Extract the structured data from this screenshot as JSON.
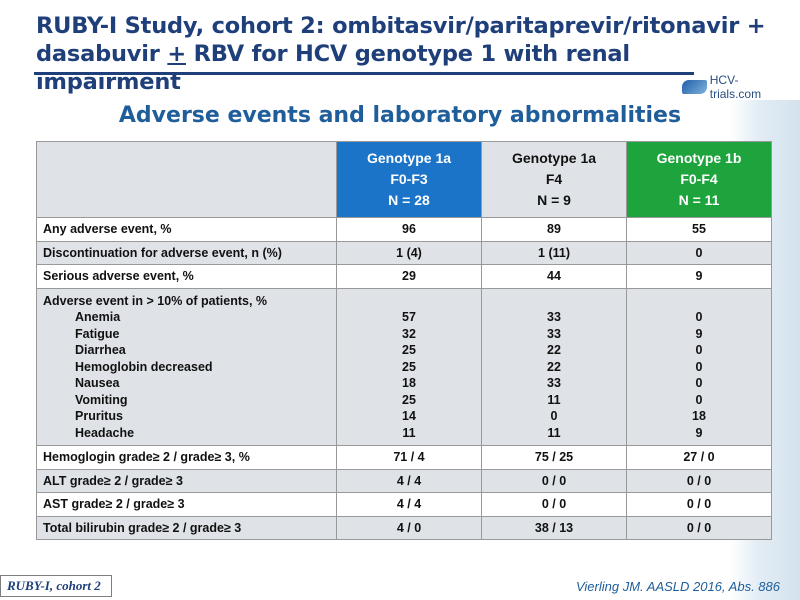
{
  "title_line1": "RUBY-I Study, cohort 2: ombitasvir/paritaprevir/ritonavir +",
  "title_line2_pre": "dasabuvir ",
  "title_line2_plus": "+",
  "title_line2_post": " RBV for HCV genotype 1 with renal impairment",
  "logo_text": "HCV-trials.com",
  "subtitle": "Adverse events and laboratory abnormalities",
  "columns": [
    {
      "l1": "Genotype 1a",
      "l2": "F0-F3",
      "l3": "N = 28"
    },
    {
      "l1": "Genotype 1a",
      "l2": "F4",
      "l3": "N = 9"
    },
    {
      "l1": "Genotype 1b",
      "l2": "F0-F4",
      "l3": "N = 11"
    }
  ],
  "rows": [
    {
      "label": "Any adverse event, %",
      "v": [
        "96",
        "89",
        "55"
      ]
    },
    {
      "label": "Discontinuation for adverse event, n (%)",
      "v": [
        "1 (4)",
        "1 (11)",
        "0"
      ]
    },
    {
      "label": "Serious adverse event, %",
      "v": [
        "29",
        "44",
        "9"
      ]
    }
  ],
  "ae_group": {
    "label": "Adverse event in > 10% of patients, %",
    "items": [
      "Anemia",
      "Fatigue",
      "Diarrhea",
      "Hemoglobin decreased",
      "Nausea",
      "Vomiting",
      "Pruritus",
      "Headache"
    ],
    "c1": [
      "57",
      "32",
      "25",
      "25",
      "18",
      "25",
      "14",
      "11"
    ],
    "c2": [
      "33",
      "33",
      "22",
      "22",
      "33",
      "11",
      "0",
      "11"
    ],
    "c3": [
      "0",
      "9",
      "0",
      "0",
      "0",
      "0",
      "18",
      "9"
    ]
  },
  "rows2": [
    {
      "label": "Hemoglogin grade≥ 2 / grade≥ 3, %",
      "v": [
        "71 / 4",
        "75 / 25",
        "27 / 0"
      ]
    },
    {
      "label": "ALT grade≥ 2 / grade≥ 3",
      "v": [
        "4 / 4",
        "0 / 0",
        "0 / 0"
      ]
    },
    {
      "label": "AST grade≥ 2 / grade≥ 3",
      "v": [
        "4 / 4",
        "0 / 0",
        "0 / 0"
      ]
    },
    {
      "label": "Total bilirubin grade≥ 2 / grade≥ 3",
      "v": [
        "4 / 0",
        "38 / 13",
        "0 / 0"
      ]
    }
  ],
  "footer_tag": "RUBY-I, cohort 2",
  "citation": "Vierling JM. AASLD 2016, Abs. 886",
  "colors": {
    "title": "#1f3f7a",
    "subtitle": "#1f5e9a",
    "g1a_header": "#1b74c8",
    "g1b_header": "#1ea43c",
    "row_shade": "#dfe3e8"
  }
}
